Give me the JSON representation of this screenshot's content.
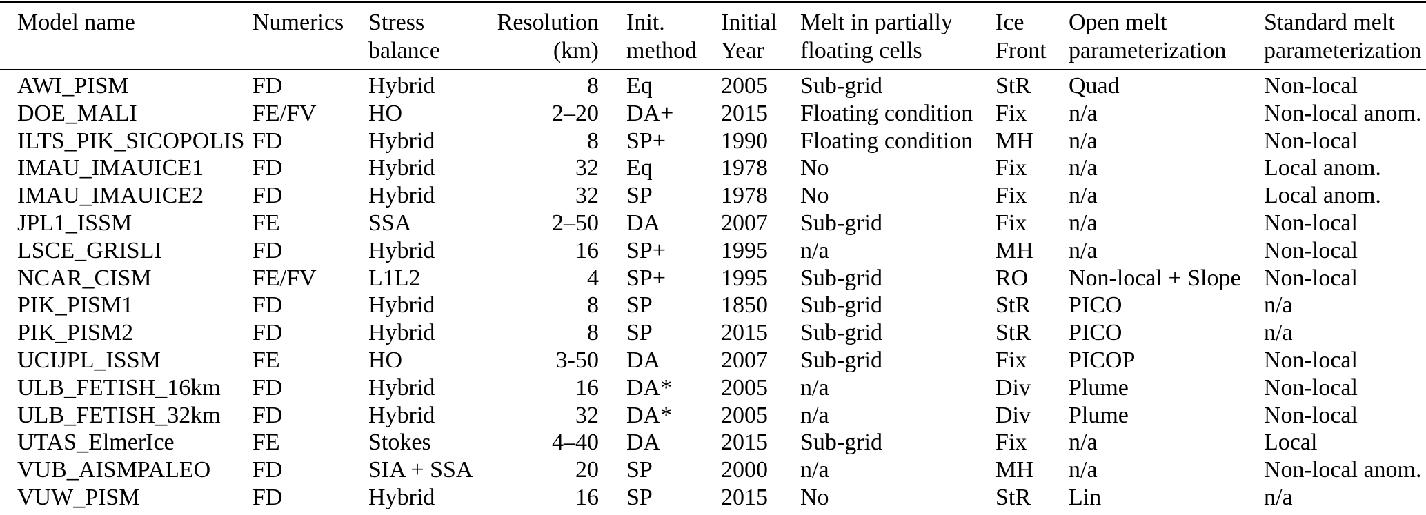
{
  "table": {
    "columns": [
      {
        "id": "model",
        "label": "Model name",
        "label2": ""
      },
      {
        "id": "numerics",
        "label": "Numerics",
        "label2": ""
      },
      {
        "id": "stress",
        "label": "Stress",
        "label2": "balance"
      },
      {
        "id": "resolution",
        "label": "Resolution",
        "label2": "(km)",
        "align": "right"
      },
      {
        "id": "init",
        "label": "Init.",
        "label2": "method"
      },
      {
        "id": "year",
        "label": "Initial",
        "label2": "Year"
      },
      {
        "id": "melt",
        "label": "Melt in partially",
        "label2": "floating cells"
      },
      {
        "id": "front",
        "label": "Ice",
        "label2": "Front"
      },
      {
        "id": "open",
        "label": "Open melt",
        "label2": "parameterization"
      },
      {
        "id": "standard",
        "label": "Standard melt",
        "label2": "parameterization"
      }
    ],
    "rows": [
      [
        "AWI_PISM",
        "FD",
        "Hybrid",
        "8",
        "Eq",
        "2005",
        "Sub-grid",
        "StR",
        "Quad",
        "Non-local"
      ],
      [
        "DOE_MALI",
        "FE/FV",
        "HO",
        "2–20",
        "DA+",
        "2015",
        "Floating condition",
        "Fix",
        "n/a",
        "Non-local anom."
      ],
      [
        "ILTS_PIK_SICOPOLIS",
        "FD",
        "Hybrid",
        "8",
        "SP+",
        "1990",
        "Floating condition",
        "MH",
        "n/a",
        "Non-local"
      ],
      [
        "IMAU_IMAUICE1",
        "FD",
        "Hybrid",
        "32",
        "Eq",
        "1978",
        "No",
        "Fix",
        "n/a",
        "Local anom."
      ],
      [
        "IMAU_IMAUICE2",
        "FD",
        "Hybrid",
        "32",
        "SP",
        "1978",
        "No",
        "Fix",
        "n/a",
        "Local anom."
      ],
      [
        "JPL1_ISSM",
        "FE",
        "SSA",
        "2–50",
        "DA",
        "2007",
        "Sub-grid",
        "Fix",
        "n/a",
        "Non-local"
      ],
      [
        "LSCE_GRISLI",
        "FD",
        "Hybrid",
        "16",
        "SP+",
        "1995",
        "n/a",
        "MH",
        "n/a",
        "Non-local"
      ],
      [
        "NCAR_CISM",
        "FE/FV",
        "L1L2",
        "4",
        "SP+",
        "1995",
        "Sub-grid",
        "RO",
        "Non-local + Slope",
        "Non-local"
      ],
      [
        "PIK_PISM1",
        "FD",
        "Hybrid",
        "8",
        "SP",
        "1850",
        "Sub-grid",
        "StR",
        "PICO",
        "n/a"
      ],
      [
        "PIK_PISM2",
        "FD",
        "Hybrid",
        "8",
        "SP",
        "2015",
        "Sub-grid",
        "StR",
        "PICO",
        "n/a"
      ],
      [
        "UCIJPL_ISSM",
        "FE",
        "HO",
        "3-50",
        "DA",
        "2007",
        "Sub-grid",
        "Fix",
        "PICOP",
        "Non-local"
      ],
      [
        "ULB_FETISH_16km",
        "FD",
        "Hybrid",
        "16",
        "DA*",
        "2005",
        "n/a",
        "Div",
        "Plume",
        "Non-local"
      ],
      [
        "ULB_FETISH_32km",
        "FD",
        "Hybrid",
        "32",
        "DA*",
        "2005",
        "n/a",
        "Div",
        "Plume",
        "Non-local"
      ],
      [
        "UTAS_ElmerIce",
        "FE",
        "Stokes",
        "4–40",
        "DA",
        "2015",
        "Sub-grid",
        "Fix",
        "n/a",
        "Local"
      ],
      [
        "VUB_AISMPALEO",
        "FD",
        "SIA + SSA",
        "20",
        "SP",
        "2000",
        "n/a",
        "MH",
        "n/a",
        "Non-local anom."
      ],
      [
        "VUW_PISM",
        "FD",
        "Hybrid",
        "16",
        "SP",
        "2015",
        "No",
        "StR",
        "Lin",
        "n/a"
      ]
    ]
  }
}
